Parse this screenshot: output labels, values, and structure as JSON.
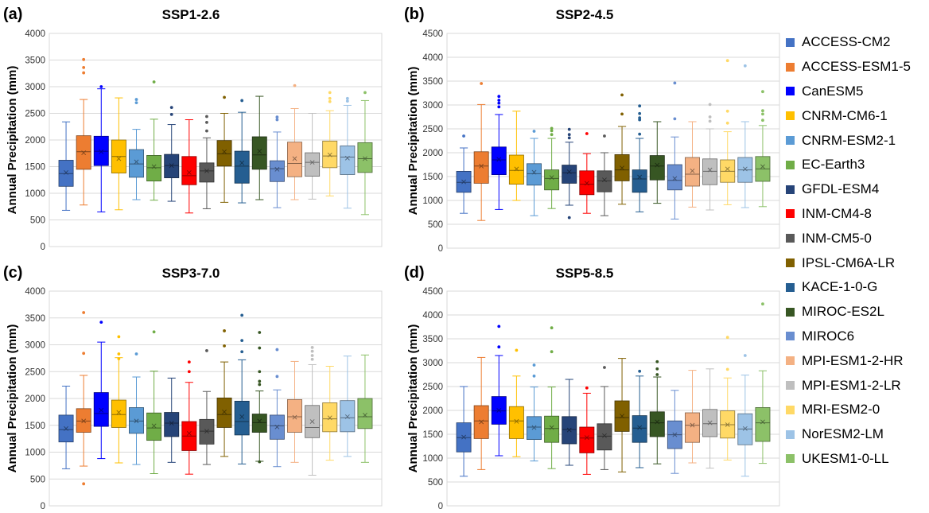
{
  "models": [
    {
      "name": "ACCESS-CM2",
      "color": "#4472C4"
    },
    {
      "name": "ACCESS-ESM1-5",
      "color": "#ED7D31"
    },
    {
      "name": "CanESM5",
      "color": "#0000FF"
    },
    {
      "name": "CNRM-CM6-1",
      "color": "#FFC000"
    },
    {
      "name": "CNRM-ESM2-1",
      "color": "#5B9BD5"
    },
    {
      "name": "EC-Earth3",
      "color": "#70AD47"
    },
    {
      "name": "GFDL-ESM4",
      "color": "#264478"
    },
    {
      "name": "INM-CM4-8",
      "color": "#FF0000"
    },
    {
      "name": "INM-CM5-0",
      "color": "#595959"
    },
    {
      "name": "IPSL-CM6A-LR",
      "color": "#806000"
    },
    {
      "name": "KACE-1-0-G",
      "color": "#255E91"
    },
    {
      "name": "MIROC-ES2L",
      "color": "#375623"
    },
    {
      "name": "MIROC6",
      "color": "#698ED0"
    },
    {
      "name": "MPI-ESM1-2-HR",
      "color": "#F4B183"
    },
    {
      "name": "MPI-ESM1-2-LR",
      "color": "#BFBFBF"
    },
    {
      "name": "MRI-ESM2-0",
      "color": "#FFD966"
    },
    {
      "name": "NorESM2-LM",
      "color": "#9DC3E6"
    },
    {
      "name": "UKESM1-0-LL",
      "color": "#8CC168"
    }
  ],
  "chart_data": [
    {
      "type": "box",
      "panel_label": "(a)",
      "title": "SSP1-2.6",
      "ylabel": "Annual Precipitation (mm)",
      "ylim": [
        0,
        4000
      ],
      "yticks": [
        0,
        500,
        1000,
        1500,
        2000,
        2500,
        3000,
        3500,
        4000
      ],
      "grid": true,
      "boxes": [
        {
          "min": 680,
          "q1": 1130,
          "median": 1370,
          "mean": 1390,
          "q3": 1620,
          "max": 2340,
          "outliers": []
        },
        {
          "min": 780,
          "q1": 1450,
          "median": 1780,
          "mean": 1760,
          "q3": 2080,
          "max": 2760,
          "outliers": [
            3260,
            3360,
            3510
          ]
        },
        {
          "min": 650,
          "q1": 1520,
          "median": 1790,
          "mean": 1780,
          "q3": 2070,
          "max": 2960,
          "outliers": [
            3000
          ]
        },
        {
          "min": 690,
          "q1": 1380,
          "median": 1690,
          "mean": 1650,
          "q3": 2000,
          "max": 2790,
          "outliers": []
        },
        {
          "min": 880,
          "q1": 1300,
          "median": 1550,
          "mean": 1590,
          "q3": 1820,
          "max": 2200,
          "outliers": [
            2700,
            2760
          ]
        },
        {
          "min": 870,
          "q1": 1230,
          "median": 1480,
          "mean": 1500,
          "q3": 1710,
          "max": 2390,
          "outliers": [
            3090
          ]
        },
        {
          "min": 850,
          "q1": 1290,
          "median": 1520,
          "mean": 1520,
          "q3": 1730,
          "max": 2290,
          "outliers": [
            2480,
            2610
          ]
        },
        {
          "min": 630,
          "q1": 1160,
          "median": 1330,
          "mean": 1390,
          "q3": 1690,
          "max": 2380,
          "outliers": []
        },
        {
          "min": 710,
          "q1": 1210,
          "median": 1420,
          "mean": 1420,
          "q3": 1570,
          "max": 2040,
          "outliers": [
            2170,
            2330,
            2440
          ]
        },
        {
          "min": 830,
          "q1": 1510,
          "median": 1740,
          "mean": 1780,
          "q3": 1990,
          "max": 2500,
          "outliers": [
            2800
          ]
        },
        {
          "min": 820,
          "q1": 1190,
          "median": 1510,
          "mean": 1570,
          "q3": 1790,
          "max": 2520,
          "outliers": [
            2740
          ]
        },
        {
          "min": 880,
          "q1": 1450,
          "median": 1720,
          "mean": 1790,
          "q3": 2060,
          "max": 2820,
          "outliers": []
        },
        {
          "min": 730,
          "q1": 1220,
          "median": 1460,
          "mean": 1450,
          "q3": 1610,
          "max": 2150,
          "outliers": [
            2380,
            2430
          ]
        },
        {
          "min": 880,
          "q1": 1310,
          "median": 1560,
          "mean": 1650,
          "q3": 1960,
          "max": 2590,
          "outliers": [
            3020
          ]
        },
        {
          "min": 890,
          "q1": 1320,
          "median": 1580,
          "mean": 1580,
          "q3": 1760,
          "max": 2500,
          "outliers": []
        },
        {
          "min": 950,
          "q1": 1480,
          "median": 1700,
          "mean": 1720,
          "q3": 1980,
          "max": 2550,
          "outliers": [
            2720,
            2780,
            2890
          ]
        },
        {
          "min": 720,
          "q1": 1350,
          "median": 1680,
          "mean": 1660,
          "q3": 1890,
          "max": 2650,
          "outliers": [
            2730,
            2780
          ]
        },
        {
          "min": 600,
          "q1": 1390,
          "median": 1650,
          "mean": 1650,
          "q3": 1950,
          "max": 2740,
          "outliers": [
            2890
          ]
        }
      ]
    },
    {
      "type": "box",
      "panel_label": "(b)",
      "title": "SSP2-4.5",
      "ylabel": "Annual Precipitation (mm)",
      "ylim": [
        0,
        4500
      ],
      "yticks": [
        0,
        500,
        1000,
        1500,
        2000,
        2500,
        3000,
        3500,
        4000,
        4500
      ],
      "grid": true,
      "boxes": [
        {
          "min": 730,
          "q1": 1170,
          "median": 1380,
          "mean": 1390,
          "q3": 1610,
          "max": 2100,
          "outliers": [
            2350
          ]
        },
        {
          "min": 580,
          "q1": 1360,
          "median": 1720,
          "mean": 1720,
          "q3": 2020,
          "max": 3010,
          "outliers": [
            3450
          ]
        },
        {
          "min": 810,
          "q1": 1540,
          "median": 1850,
          "mean": 1860,
          "q3": 2120,
          "max": 2800,
          "outliers": [
            2960,
            3040,
            3100,
            3180
          ]
        },
        {
          "min": 1000,
          "q1": 1340,
          "median": 1630,
          "mean": 1660,
          "q3": 1950,
          "max": 2870,
          "outliers": []
        },
        {
          "min": 680,
          "q1": 1320,
          "median": 1560,
          "mean": 1590,
          "q3": 1770,
          "max": 2300,
          "outliers": [
            2450
          ]
        },
        {
          "min": 830,
          "q1": 1220,
          "median": 1460,
          "mean": 1480,
          "q3": 1640,
          "max": 2300,
          "outliers": [
            2380,
            2460,
            2510
          ]
        },
        {
          "min": 900,
          "q1": 1360,
          "median": 1580,
          "mean": 1600,
          "q3": 1740,
          "max": 2220,
          "outliers": [
            640,
            2310,
            2380,
            2490
          ]
        },
        {
          "min": 730,
          "q1": 1120,
          "median": 1340,
          "mean": 1360,
          "q3": 1620,
          "max": 1980,
          "outliers": [
            2400
          ]
        },
        {
          "min": 680,
          "q1": 1180,
          "median": 1410,
          "mean": 1430,
          "q3": 1620,
          "max": 2000,
          "outliers": [
            2350
          ]
        },
        {
          "min": 920,
          "q1": 1410,
          "median": 1640,
          "mean": 1680,
          "q3": 1960,
          "max": 2550,
          "outliers": [
            2810,
            3210
          ]
        },
        {
          "min": 760,
          "q1": 1170,
          "median": 1450,
          "mean": 1490,
          "q3": 1640,
          "max": 2300,
          "outliers": [
            2390,
            2690,
            2730,
            2820,
            2980
          ]
        },
        {
          "min": 940,
          "q1": 1430,
          "median": 1720,
          "mean": 1740,
          "q3": 1940,
          "max": 2650,
          "outliers": []
        },
        {
          "min": 610,
          "q1": 1220,
          "median": 1420,
          "mean": 1460,
          "q3": 1750,
          "max": 2330,
          "outliers": [
            2710,
            3460
          ]
        },
        {
          "min": 860,
          "q1": 1300,
          "median": 1550,
          "mean": 1620,
          "q3": 1900,
          "max": 2650,
          "outliers": []
        },
        {
          "min": 800,
          "q1": 1330,
          "median": 1610,
          "mean": 1640,
          "q3": 1870,
          "max": 2500,
          "outliers": [
            2660,
            2750,
            3010
          ]
        },
        {
          "min": 910,
          "q1": 1380,
          "median": 1610,
          "mean": 1660,
          "q3": 1850,
          "max": 2440,
          "outliers": [
            2620,
            2870,
            3930
          ]
        },
        {
          "min": 850,
          "q1": 1380,
          "median": 1640,
          "mean": 1660,
          "q3": 1900,
          "max": 2650,
          "outliers": [
            3820
          ]
        },
        {
          "min": 870,
          "q1": 1400,
          "median": 1660,
          "mean": 1710,
          "q3": 1920,
          "max": 2570,
          "outliers": [
            2680,
            2810,
            2880,
            3280
          ]
        }
      ]
    },
    {
      "type": "box",
      "panel_label": "(c)",
      "title": "SSP3-7.0",
      "ylabel": "Annual Precipitation (mm)",
      "ylim": [
        0,
        4000
      ],
      "yticks": [
        0,
        500,
        1000,
        1500,
        2000,
        2500,
        3000,
        3500,
        4000
      ],
      "grid": true,
      "boxes": [
        {
          "min": 690,
          "q1": 1190,
          "median": 1420,
          "mean": 1440,
          "q3": 1690,
          "max": 2230,
          "outliers": []
        },
        {
          "min": 740,
          "q1": 1370,
          "median": 1580,
          "mean": 1580,
          "q3": 1810,
          "max": 2430,
          "outliers": [
            410,
            2840,
            3600
          ]
        },
        {
          "min": 880,
          "q1": 1480,
          "median": 1720,
          "mean": 1780,
          "q3": 2110,
          "max": 3050,
          "outliers": [
            3420
          ]
        },
        {
          "min": 800,
          "q1": 1460,
          "median": 1700,
          "mean": 1740,
          "q3": 1970,
          "max": 2760,
          "outliers": [
            2740,
            2830,
            3150
          ]
        },
        {
          "min": 770,
          "q1": 1350,
          "median": 1580,
          "mean": 1580,
          "q3": 1830,
          "max": 2400,
          "outliers": [
            2830
          ]
        },
        {
          "min": 600,
          "q1": 1220,
          "median": 1450,
          "mean": 1490,
          "q3": 1730,
          "max": 2510,
          "outliers": [
            3240
          ]
        },
        {
          "min": 810,
          "q1": 1290,
          "median": 1540,
          "mean": 1540,
          "q3": 1740,
          "max": 2380,
          "outliers": []
        },
        {
          "min": 590,
          "q1": 1030,
          "median": 1300,
          "mean": 1350,
          "q3": 1570,
          "max": 2300,
          "outliers": [
            2500,
            2680
          ]
        },
        {
          "min": 770,
          "q1": 1150,
          "median": 1390,
          "mean": 1390,
          "q3": 1610,
          "max": 2130,
          "outliers": [
            2890
          ]
        },
        {
          "min": 920,
          "q1": 1460,
          "median": 1700,
          "mean": 1750,
          "q3": 2010,
          "max": 2680,
          "outliers": [
            2980,
            3260
          ]
        },
        {
          "min": 780,
          "q1": 1320,
          "median": 1570,
          "mean": 1660,
          "q3": 1950,
          "max": 2720,
          "outliers": [
            2870,
            3080,
            3550
          ]
        },
        {
          "min": 830,
          "q1": 1370,
          "median": 1550,
          "mean": 1580,
          "q3": 1710,
          "max": 2140,
          "outliers": [
            820,
            2260,
            2320,
            2500,
            2940,
            3230
          ]
        },
        {
          "min": 730,
          "q1": 1240,
          "median": 1490,
          "mean": 1470,
          "q3": 1690,
          "max": 2160,
          "outliers": [
            2410,
            2910
          ]
        },
        {
          "min": 810,
          "q1": 1370,
          "median": 1660,
          "mean": 1650,
          "q3": 1980,
          "max": 2690,
          "outliers": []
        },
        {
          "min": 570,
          "q1": 1270,
          "median": 1460,
          "mean": 1570,
          "q3": 1870,
          "max": 2630,
          "outliers": [
            2730,
            2800,
            2880,
            2950
          ]
        },
        {
          "min": 850,
          "q1": 1380,
          "median": 1620,
          "mean": 1640,
          "q3": 1920,
          "max": 2600,
          "outliers": []
        },
        {
          "min": 920,
          "q1": 1380,
          "median": 1640,
          "mean": 1660,
          "q3": 1960,
          "max": 2790,
          "outliers": []
        },
        {
          "min": 810,
          "q1": 1440,
          "median": 1660,
          "mean": 1690,
          "q3": 2000,
          "max": 2810,
          "outliers": []
        }
      ]
    },
    {
      "type": "box",
      "panel_label": "(d)",
      "title": "SSP5-8.5",
      "ylabel": "Annual Precipitation (mm)",
      "ylim": [
        0,
        4500
      ],
      "yticks": [
        0,
        500,
        1000,
        1500,
        2000,
        2500,
        3000,
        3500,
        4000,
        4500
      ],
      "grid": true,
      "boxes": [
        {
          "min": 620,
          "q1": 1130,
          "median": 1430,
          "mean": 1440,
          "q3": 1740,
          "max": 2500,
          "outliers": []
        },
        {
          "min": 760,
          "q1": 1410,
          "median": 1780,
          "mean": 1760,
          "q3": 2100,
          "max": 3110,
          "outliers": []
        },
        {
          "min": 1050,
          "q1": 1710,
          "median": 1990,
          "mean": 2000,
          "q3": 2290,
          "max": 3150,
          "outliers": [
            3330,
            3760
          ]
        },
        {
          "min": 1030,
          "q1": 1410,
          "median": 1780,
          "mean": 1770,
          "q3": 2080,
          "max": 2720,
          "outliers": [
            3260
          ]
        },
        {
          "min": 940,
          "q1": 1390,
          "median": 1650,
          "mean": 1640,
          "q3": 1870,
          "max": 2490,
          "outliers": [
            2720,
            2950
          ]
        },
        {
          "min": 780,
          "q1": 1330,
          "median": 1620,
          "mean": 1640,
          "q3": 1880,
          "max": 2490,
          "outliers": [
            3230,
            3730
          ]
        },
        {
          "min": 850,
          "q1": 1300,
          "median": 1600,
          "mean": 1590,
          "q3": 1870,
          "max": 2650,
          "outliers": []
        },
        {
          "min": 660,
          "q1": 1110,
          "median": 1420,
          "mean": 1430,
          "q3": 1650,
          "max": 2360,
          "outliers": [
            2470
          ]
        },
        {
          "min": 760,
          "q1": 1170,
          "median": 1460,
          "mean": 1470,
          "q3": 1720,
          "max": 2500,
          "outliers": [
            2900
          ]
        },
        {
          "min": 710,
          "q1": 1560,
          "median": 1850,
          "mean": 1880,
          "q3": 2200,
          "max": 3090,
          "outliers": []
        },
        {
          "min": 800,
          "q1": 1330,
          "median": 1630,
          "mean": 1640,
          "q3": 1890,
          "max": 2720,
          "outliers": [
            2820
          ]
        },
        {
          "min": 880,
          "q1": 1450,
          "median": 1740,
          "mean": 1760,
          "q3": 1970,
          "max": 2700,
          "outliers": [
            2750,
            2870,
            3020
          ]
        },
        {
          "min": 680,
          "q1": 1200,
          "median": 1490,
          "mean": 1490,
          "q3": 1780,
          "max": 2420,
          "outliers": []
        },
        {
          "min": 900,
          "q1": 1330,
          "median": 1690,
          "mean": 1690,
          "q3": 1950,
          "max": 2840,
          "outliers": []
        },
        {
          "min": 790,
          "q1": 1450,
          "median": 1720,
          "mean": 1740,
          "q3": 2020,
          "max": 2870,
          "outliers": []
        },
        {
          "min": 960,
          "q1": 1420,
          "median": 1700,
          "mean": 1700,
          "q3": 1990,
          "max": 2680,
          "outliers": [
            2860,
            3530
          ]
        },
        {
          "min": 620,
          "q1": 1280,
          "median": 1610,
          "mean": 1620,
          "q3": 1930,
          "max": 2740,
          "outliers": [
            3150
          ]
        },
        {
          "min": 890,
          "q1": 1350,
          "median": 1740,
          "mean": 1760,
          "q3": 2060,
          "max": 2830,
          "outliers": [
            4230
          ]
        }
      ]
    }
  ]
}
